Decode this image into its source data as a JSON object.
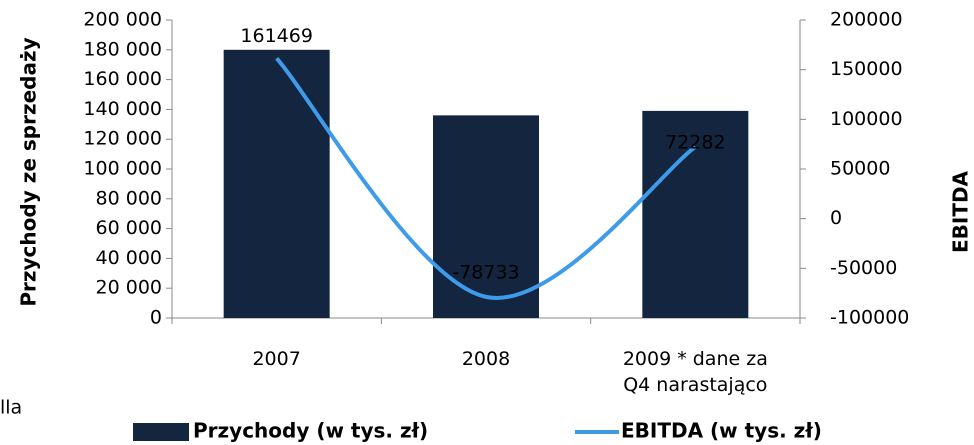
{
  "chart_data": {
    "type": "bar_line",
    "y_label": "Przychody ze sprzedaży",
    "y2_label": "EBITDA",
    "categories": [
      "2007",
      "2008",
      "2009 * dane za Q4 narastająco"
    ],
    "series": [
      {
        "name": "Przychody (w tys. zł)",
        "color": "#14253f",
        "type": "bar",
        "values": [
          180000,
          136000,
          139000
        ]
      },
      {
        "name": "EBITDA (w tys. zł)",
        "color": "#3d9be9",
        "type": "line",
        "axis": "y2",
        "values": [
          161469,
          -78733,
          72282
        ]
      }
    ],
    "ylim": [
      0,
      200000
    ],
    "yticks": [
      0,
      {
        "value": 20000,
        "label": "20 000"
      },
      {
        "value": 40000,
        "label": "40 000"
      },
      {
        "value": 60000,
        "label": "60 000"
      },
      {
        "value": 80000,
        "label": "80 000"
      },
      {
        "value": 100000,
        "label": "100 000"
      },
      {
        "value": 120000,
        "label": "120 000"
      },
      {
        "value": 140000,
        "label": "140 000"
      },
      {
        "value": 160000,
        "label": "160 000"
      },
      {
        "value": 180000,
        "label": "180 000"
      },
      {
        "value": 200000,
        "label": "200 000"
      }
    ],
    "y2lim": [
      -100000,
      200000
    ],
    "y2ticks": [
      -100000,
      -50000,
      0,
      50000,
      100000,
      150000,
      200000
    ],
    "annotations": [
      "lla"
    ]
  }
}
